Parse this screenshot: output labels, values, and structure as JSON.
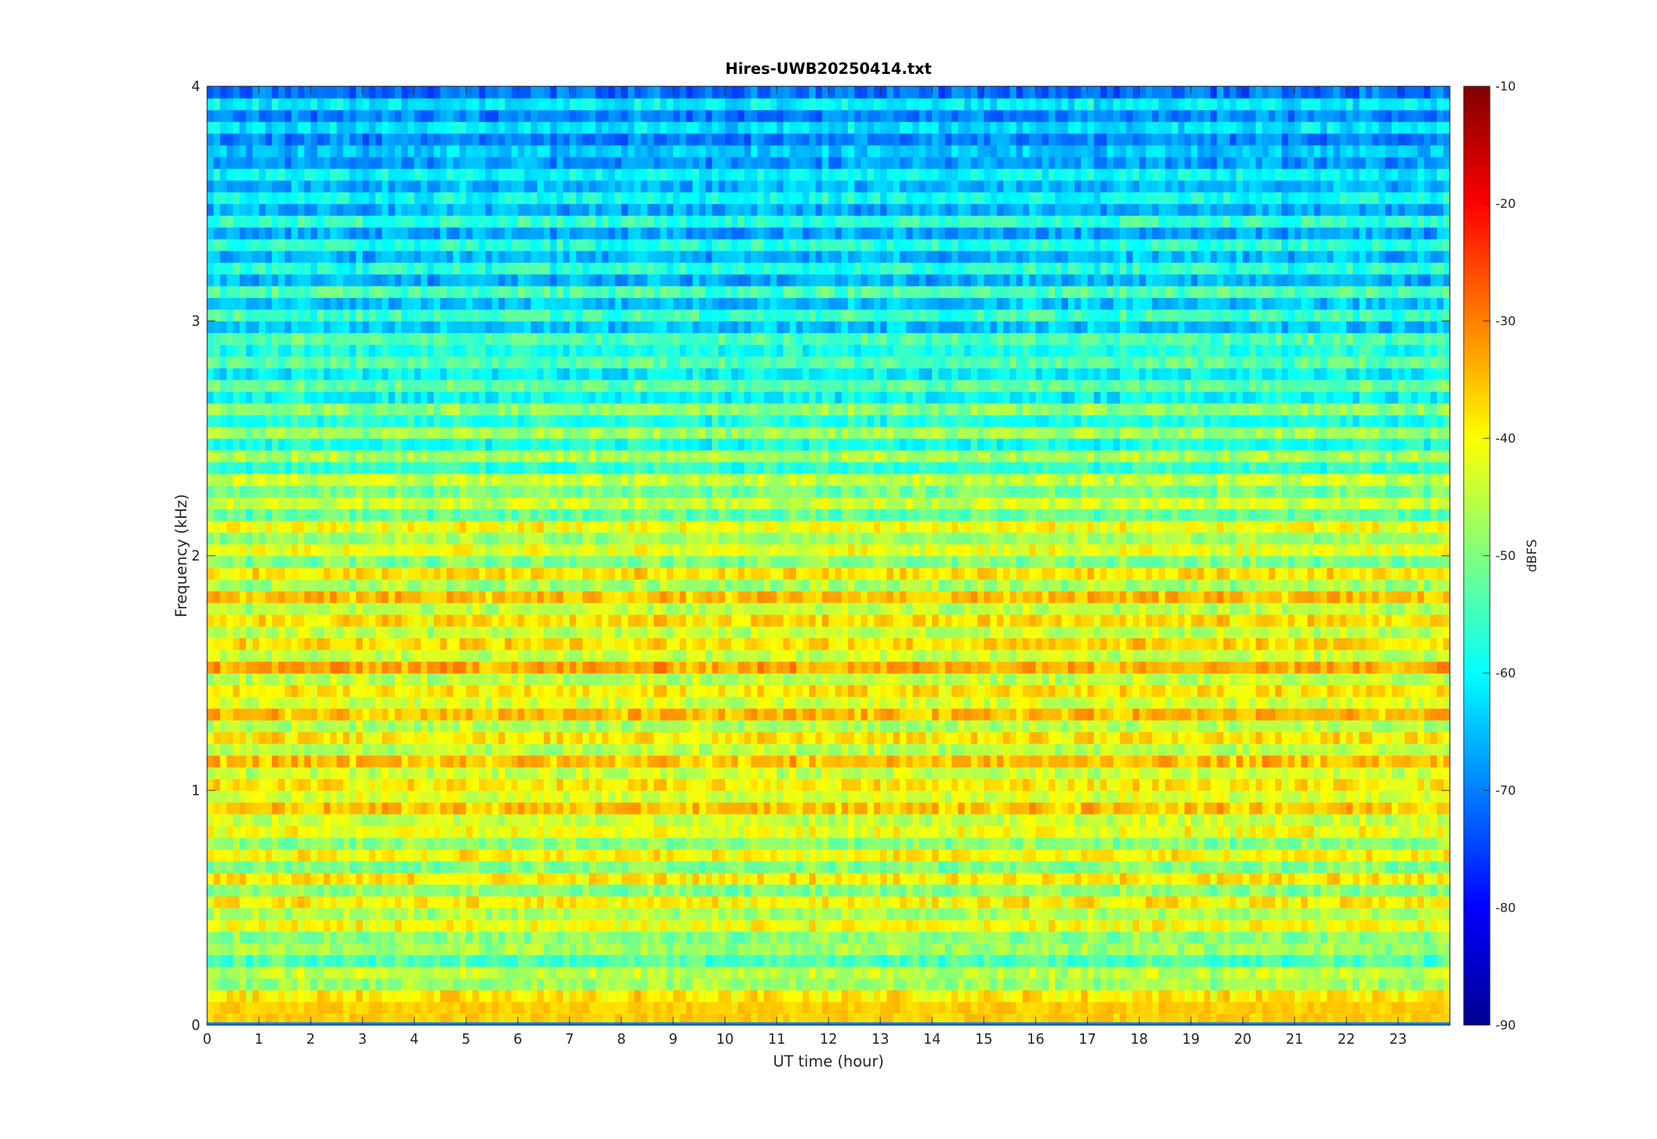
{
  "chart_data": {
    "type": "heatmap",
    "title": "Hires-UWB20250414.txt",
    "xlabel": "UT time (hour)",
    "ylabel": "Frequency (kHz)",
    "colorbar_label": "dBFS",
    "xlim": [
      0,
      24
    ],
    "ylim": [
      0,
      4
    ],
    "clim": [
      -90,
      -10
    ],
    "x_ticks": [
      "0",
      "1",
      "2",
      "3",
      "4",
      "5",
      "6",
      "7",
      "8",
      "9",
      "10",
      "11",
      "12",
      "13",
      "14",
      "15",
      "16",
      "17",
      "18",
      "19",
      "20",
      "21",
      "22",
      "23"
    ],
    "y_ticks": [
      "0",
      "1",
      "2",
      "3",
      "4"
    ],
    "colorbar_ticks": [
      "-10",
      "-20",
      "-30",
      "-40",
      "-50",
      "-60",
      "-70",
      "-80",
      "-90"
    ],
    "colormap": "jet",
    "colormap_colors": [
      "#00008f",
      "#0000ff",
      "#00ffff",
      "#ffff00",
      "#ff0000",
      "#800000"
    ],
    "approx_band_levels_dBFS": [
      {
        "freq_kHz": 0.05,
        "level": -38
      },
      {
        "freq_kHz": 0.25,
        "level": -52
      },
      {
        "freq_kHz": 0.45,
        "level": -45
      },
      {
        "freq_kHz": 0.75,
        "level": -44
      },
      {
        "freq_kHz": 1.05,
        "level": -40
      },
      {
        "freq_kHz": 1.45,
        "level": -42
      },
      {
        "freq_kHz": 1.55,
        "level": -38
      },
      {
        "freq_kHz": 1.75,
        "level": -41
      },
      {
        "freq_kHz": 1.95,
        "level": -44
      },
      {
        "freq_kHz": 2.35,
        "level": -50
      },
      {
        "freq_kHz": 2.75,
        "level": -56
      },
      {
        "freq_kHz": 3.25,
        "level": -60
      },
      {
        "freq_kHz": 3.75,
        "level": -66
      }
    ]
  }
}
